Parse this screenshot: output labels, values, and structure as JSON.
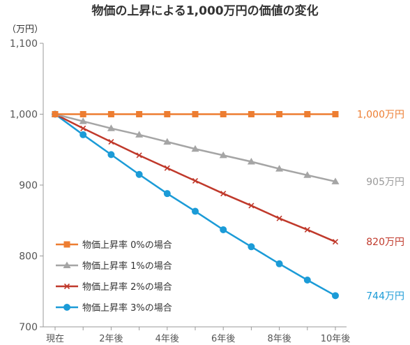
{
  "chart_data": {
    "type": "line",
    "title": "物価の上昇による1,000万円の価値の変化",
    "ylabel": "（万円）",
    "ylim": [
      700,
      1100
    ],
    "yticks": [
      "1,100",
      "1,000",
      "900",
      "800",
      "700"
    ],
    "x": [
      0,
      1,
      2,
      3,
      4,
      5,
      6,
      7,
      8,
      9,
      10
    ],
    "xtick_labels": [
      "現在",
      "2年後",
      "4年後",
      "6年後",
      "8年後",
      "10年後"
    ],
    "grid": false,
    "legend_position": "bottom-left",
    "series": [
      {
        "name": "物価上昇率 0%の場合",
        "color": "#ED7D31",
        "marker": "square",
        "values": [
          1000,
          1000,
          1000,
          1000,
          1000,
          1000,
          1000,
          1000,
          1000,
          1000,
          1000
        ],
        "end_label": "1,000万円"
      },
      {
        "name": "物価上昇率 1%の場合",
        "color": "#A5A5A5",
        "marker": "triangle",
        "values": [
          1000,
          990,
          980,
          971,
          961,
          951,
          942,
          933,
          923,
          914,
          905
        ],
        "end_label": "905万円"
      },
      {
        "name": "物価上昇率 2%の場合",
        "color": "#C0392B",
        "marker": "x",
        "values": [
          1000,
          980,
          961,
          942,
          924,
          906,
          888,
          871,
          853,
          837,
          820
        ],
        "end_label": "820万円"
      },
      {
        "name": "物価上昇率 3%の場合",
        "color": "#1B9BD7",
        "marker": "circle",
        "values": [
          1000,
          971,
          943,
          915,
          888,
          863,
          837,
          813,
          789,
          766,
          744
        ],
        "end_label": "744万円"
      }
    ]
  }
}
